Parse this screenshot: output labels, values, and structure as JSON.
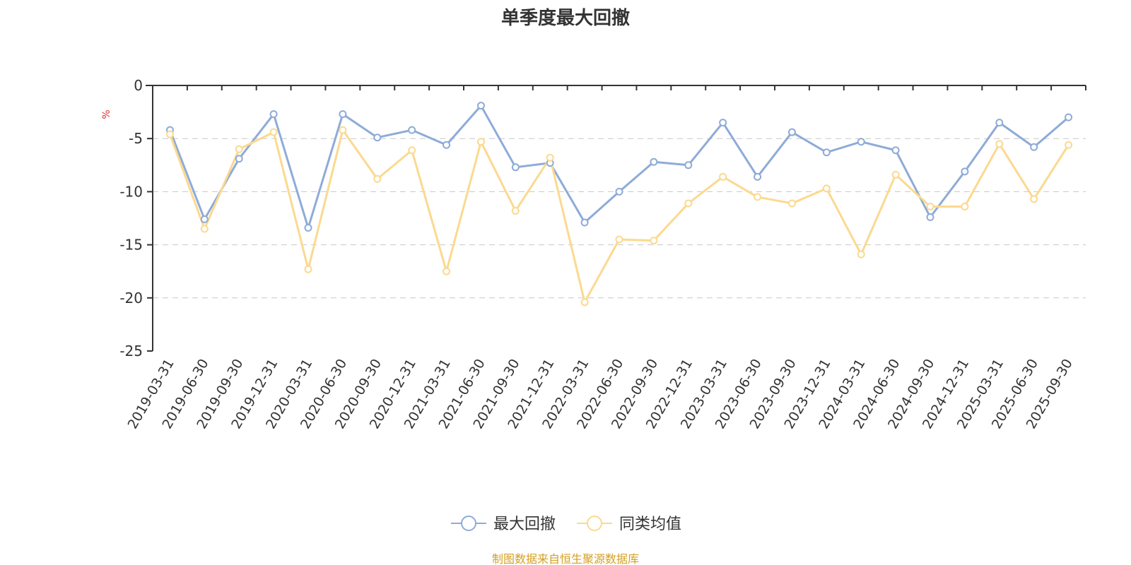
{
  "chart_data": {
    "type": "line",
    "title": "单季度最大回撤",
    "ylabel": "%",
    "xlabel": "",
    "ylim": [
      -25,
      0
    ],
    "yticks": [
      0,
      -5,
      -10,
      -15,
      -20,
      -25
    ],
    "grid": true,
    "legend_position": "bottom-center",
    "categories": [
      "2019-03-31",
      "2019-06-30",
      "2019-09-30",
      "2019-12-31",
      "2020-03-31",
      "2020-06-30",
      "2020-09-30",
      "2020-12-31",
      "2021-03-31",
      "2021-06-30",
      "2021-09-30",
      "2021-12-31",
      "2022-03-31",
      "2022-06-30",
      "2022-09-30",
      "2022-12-31",
      "2023-03-31",
      "2023-06-30",
      "2023-09-30",
      "2023-12-31",
      "2024-03-31",
      "2024-06-30",
      "2024-09-30",
      "2024-12-31",
      "2025-03-31",
      "2025-06-30",
      "2025-09-30"
    ],
    "series": [
      {
        "name": "最大回撤",
        "color": "#8eabd8",
        "values": [
          -4.2,
          -12.6,
          -6.9,
          -2.7,
          -13.4,
          -2.7,
          -4.9,
          -4.2,
          -5.6,
          -1.9,
          -7.7,
          -7.3,
          -12.9,
          -10.0,
          -7.2,
          -7.5,
          -3.5,
          -8.6,
          -4.4,
          -6.3,
          -5.3,
          -6.1,
          -12.4,
          -8.1,
          -3.5,
          -5.8,
          -3.0
        ]
      },
      {
        "name": "同类均值",
        "color": "#fbd98f",
        "values": [
          -4.6,
          -13.5,
          -6.0,
          -4.4,
          -17.3,
          -4.2,
          -8.8,
          -6.1,
          -17.5,
          -5.3,
          -11.8,
          -6.8,
          -20.4,
          -14.5,
          -14.6,
          -11.1,
          -8.6,
          -10.5,
          -11.1,
          -9.7,
          -15.9,
          -8.4,
          -11.4,
          -11.4,
          -5.5,
          -10.7,
          -5.6
        ]
      }
    ],
    "source": "制图数据来自恒生聚源数据库",
    "colors": {
      "unit": "#e03131",
      "source": "#d4a020",
      "axis": "#333333",
      "grid": "#c8c8c8"
    }
  }
}
